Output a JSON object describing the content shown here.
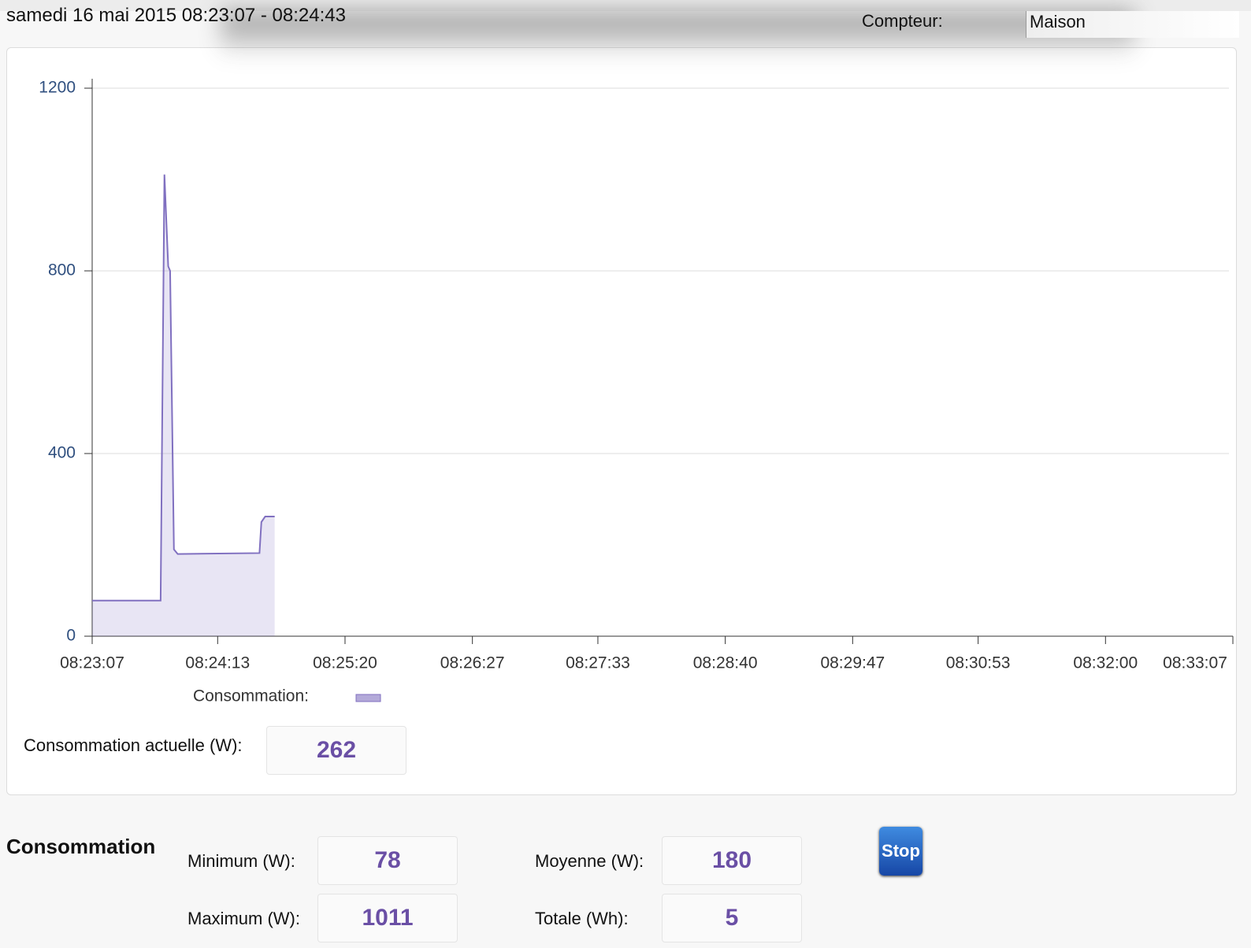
{
  "header": {
    "title": "samedi 16 mai 2015 08:23:07 - 08:24:43",
    "meter_label": "Compteur:",
    "meter_value": "Maison"
  },
  "chart_data": {
    "type": "area",
    "x": [
      "08:23:07",
      "08:23:43",
      "08:23:45",
      "08:23:47",
      "08:23:48",
      "08:23:50",
      "08:23:52",
      "08:24:35",
      "08:24:36",
      "08:24:38",
      "08:24:43"
    ],
    "series": [
      {
        "name": "Consommation:",
        "color": "#8070c0",
        "values": [
          78,
          78,
          1011,
          810,
          800,
          190,
          180,
          182,
          250,
          262,
          262
        ]
      }
    ],
    "xlim": [
      "08:23:07",
      "08:33:07"
    ],
    "xticks": [
      "08:23:07",
      "08:24:13",
      "08:25:20",
      "08:26:27",
      "08:27:33",
      "08:28:40",
      "08:29:47",
      "08:30:53",
      "08:32:00",
      "08:33:07"
    ],
    "ylim": [
      0,
      1200
    ],
    "yticks": [
      0,
      400,
      800,
      1200
    ],
    "grid": true
  },
  "current": {
    "label": "Consommation actuelle (W):",
    "value": 262
  },
  "stats": {
    "title": "Consommation",
    "items": [
      {
        "label": "Minimum (W):",
        "value": 78
      },
      {
        "label": "Moyenne (W):",
        "value": 180
      },
      {
        "label": "Maximum (W):",
        "value": 1011
      },
      {
        "label": "Totale (Wh):",
        "value": 5
      }
    ]
  },
  "button": "Stop"
}
